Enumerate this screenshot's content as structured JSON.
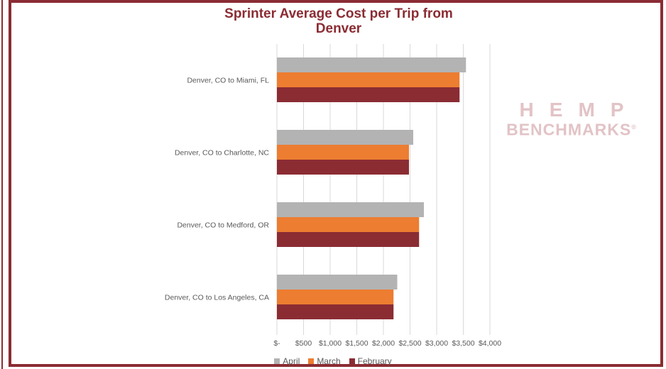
{
  "chart_data": {
    "type": "bar",
    "orientation": "horizontal",
    "title": "Sprinter Average Cost per Trip from Denver",
    "categories": [
      "Denver, CO to Miami, FL",
      "Denver, CO to Charlotte, NC",
      "Denver, CO to Medford, OR",
      "Denver, CO to Los Angeles, CA"
    ],
    "series": [
      {
        "name": "April",
        "color": "#b3b3b3",
        "values": [
          3550,
          2560,
          2760,
          2260
        ]
      },
      {
        "name": "March",
        "color": "#ed7d31",
        "values": [
          3430,
          2480,
          2670,
          2190
        ]
      },
      {
        "name": "February",
        "color": "#8b2c33",
        "values": [
          3430,
          2480,
          2670,
          2190
        ]
      }
    ],
    "xlim": [
      0,
      4000
    ],
    "xticks": [
      {
        "value": 0,
        "label": "$-"
      },
      {
        "value": 500,
        "label": "$500"
      },
      {
        "value": 1000,
        "label": "$1,000"
      },
      {
        "value": 1500,
        "label": "$1,500"
      },
      {
        "value": 2000,
        "label": "$2,000"
      },
      {
        "value": 2500,
        "label": "$2,500"
      },
      {
        "value": 3000,
        "label": "$3,000"
      },
      {
        "value": 3500,
        "label": "$3,500"
      },
      {
        "value": 4000,
        "label": "$4,000"
      }
    ],
    "grid": true,
    "legend_position": "bottom"
  },
  "logo": {
    "line1": "HEMP",
    "line2": "BENCHMARKS",
    "mark": "®"
  }
}
